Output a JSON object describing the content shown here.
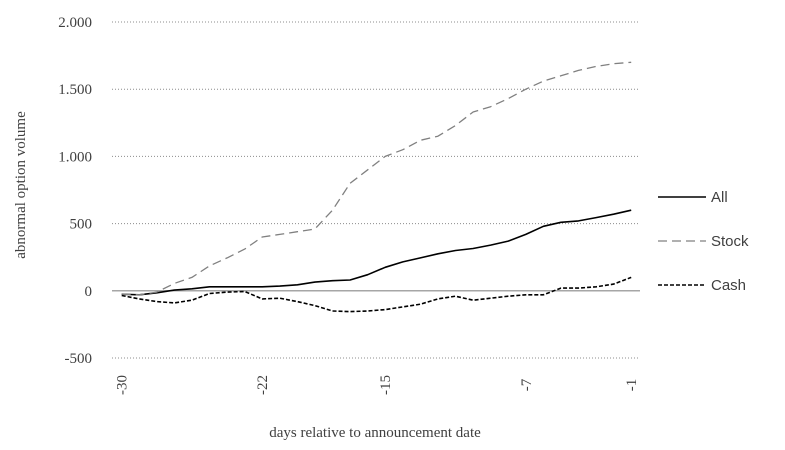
{
  "chart_data": {
    "type": "line",
    "xlabel": "days relative to announcement date",
    "ylabel": "abnormal option volume",
    "x": [
      -30,
      -29,
      -28,
      -27,
      -26,
      -25,
      -24,
      -23,
      -22,
      -21,
      -20,
      -19,
      -18,
      -17,
      -16,
      -15,
      -14,
      -13,
      -12,
      -11,
      -10,
      -9,
      -8,
      -7,
      -6,
      -5,
      -4,
      -3,
      -2,
      -1
    ],
    "x_tick_labels": [
      "-30",
      "-22",
      "-15",
      "-7",
      "-1"
    ],
    "x_ticks": [
      -30,
      -22,
      -15,
      -7,
      -1
    ],
    "ylim": [
      -500,
      2000
    ],
    "y_ticks": [
      -500,
      0,
      500,
      1000,
      1500,
      2000
    ],
    "y_tick_labels": [
      "-500",
      "0",
      "500",
      "1.000",
      "1.500",
      "2.000"
    ],
    "grid": "horizontal-dotted",
    "legend_position": "right",
    "series": [
      {
        "name": "All",
        "style": "solid",
        "color": "#000000",
        "values": [
          -25,
          -30,
          -15,
          5,
          15,
          30,
          30,
          30,
          30,
          35,
          45,
          65,
          75,
          80,
          120,
          175,
          215,
          245,
          275,
          300,
          315,
          340,
          370,
          420,
          480,
          510,
          520,
          545,
          570,
          600
        ]
      },
      {
        "name": "Stock",
        "style": "dashed",
        "color": "#808080",
        "values": [
          -25,
          -30,
          -10,
          55,
          100,
          185,
          245,
          310,
          400,
          420,
          440,
          460,
          600,
          800,
          900,
          1000,
          1050,
          1120,
          1150,
          1230,
          1330,
          1370,
          1430,
          1500,
          1560,
          1600,
          1640,
          1670,
          1690,
          1700
        ]
      },
      {
        "name": "Cash",
        "style": "dotted",
        "color": "#000000",
        "values": [
          -35,
          -60,
          -80,
          -90,
          -70,
          -20,
          -10,
          -5,
          -60,
          -55,
          -80,
          -110,
          -150,
          -155,
          -150,
          -140,
          -120,
          -100,
          -60,
          -40,
          -70,
          -55,
          -40,
          -30,
          -30,
          20,
          20,
          30,
          50,
          100
        ]
      }
    ]
  }
}
